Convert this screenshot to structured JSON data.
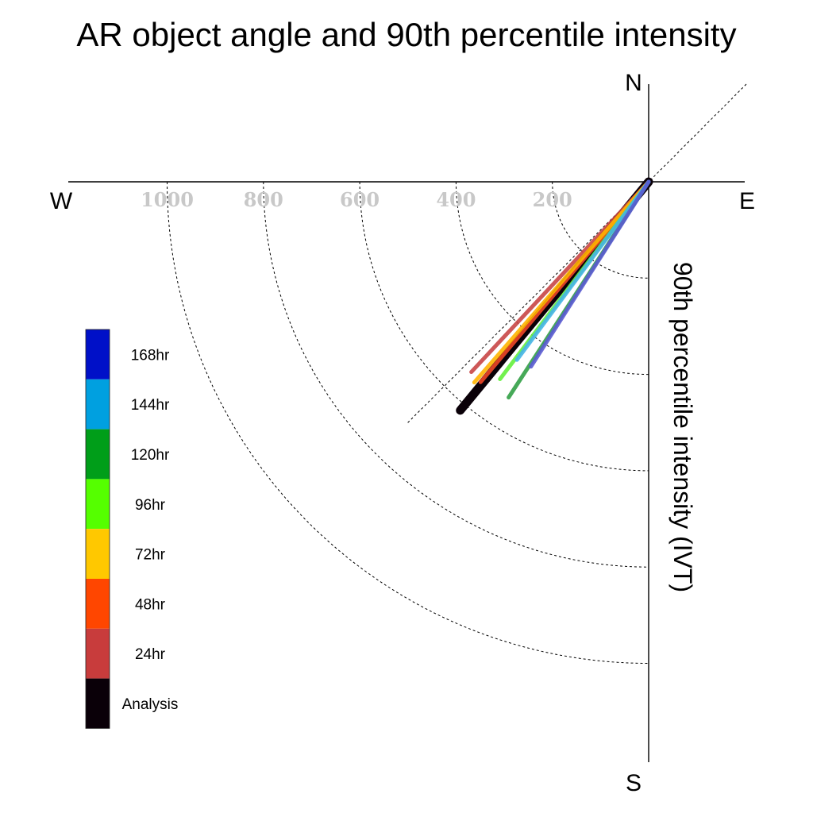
{
  "chart_data": {
    "type": "polar-line",
    "title": "AR object angle and 90th percentile intensity",
    "ylabel": "90th percentile intensity (IVT)",
    "compass": {
      "north": "N",
      "south": "S",
      "east": "E",
      "west": "W"
    },
    "radial_ticks": [
      200,
      400,
      600,
      800,
      1000
    ],
    "radial_tick_labels": [
      "200",
      "400",
      "600",
      "800",
      "1000"
    ],
    "r_max": 1200,
    "reference_angle_deg": 225,
    "legend_placement": "left",
    "series": [
      {
        "name": "168hr",
        "angle_deg": 212.5,
        "intensity": 455,
        "color": "#0010c8",
        "line_color": "#5a5ad2"
      },
      {
        "name": "144hr",
        "angle_deg": 216.5,
        "intensity": 460,
        "color": "#00a0e0",
        "line_color": "#46b4e6"
      },
      {
        "name": "120hr",
        "angle_deg": 213,
        "intensity": 534,
        "color": "#009e19",
        "line_color": "#32a046"
      },
      {
        "name": "96hr",
        "angle_deg": 217,
        "intensity": 513,
        "color": "#55ff00",
        "line_color": "#64f03c"
      },
      {
        "name": "72hr",
        "angle_deg": 221,
        "intensity": 552,
        "color": "#ffc800",
        "line_color": "#ffb400"
      },
      {
        "name": "48hr",
        "angle_deg": 220,
        "intensity": 543,
        "color": "#ff4600",
        "line_color": "#f04628"
      },
      {
        "name": "24hr",
        "angle_deg": 223,
        "intensity": 540,
        "color": "#c83c3c",
        "line_color": "#c84646"
      },
      {
        "name": "Analysis",
        "angle_deg": 219.5,
        "intensity": 615,
        "color": "#0a0008",
        "line_color": "#0a0008"
      }
    ]
  }
}
